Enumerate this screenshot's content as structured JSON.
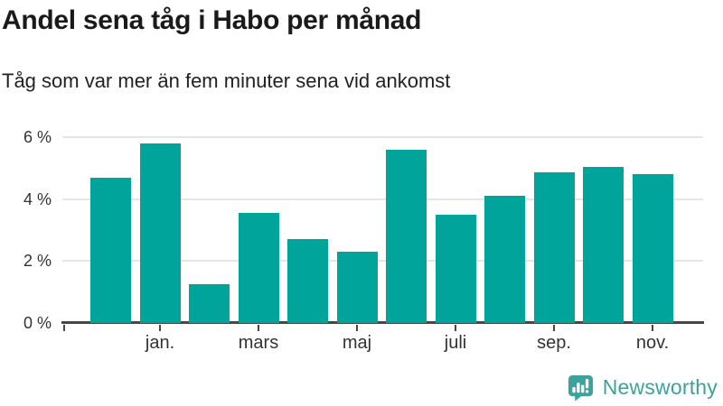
{
  "header": {
    "title": "Andel sena tåg i Habo per månad",
    "subtitle": "Tåg som var mer än fem minuter sena vid ankomst"
  },
  "chart_data": {
    "type": "bar",
    "title": "Andel sena tåg i Habo per månad",
    "subtitle": "Tåg som var mer än fem minuter sena vid ankomst",
    "categories": [
      "",
      "jan.",
      "",
      "mars",
      "",
      "maj",
      "",
      "juli",
      "",
      "sep.",
      "",
      "nov."
    ],
    "values": [
      4.7,
      5.8,
      1.25,
      3.55,
      2.7,
      2.3,
      5.6,
      3.5,
      4.1,
      4.85,
      5.05,
      4.8
    ],
    "unit": "%",
    "xlabel": "",
    "ylabel": "",
    "y_ticks": [
      {
        "value": 0,
        "label": "0 %"
      },
      {
        "value": 2,
        "label": "2 %"
      },
      {
        "value": 4,
        "label": "4 %"
      },
      {
        "value": 6,
        "label": "6 %"
      }
    ],
    "ylim": [
      0,
      6.35
    ],
    "grid": "horizontal",
    "legend": "none",
    "bar_color": "#00a49b"
  },
  "footer": {
    "brand": "Newsworthy",
    "logo_icon": "bar-chart-speech-bubble-icon"
  },
  "colors": {
    "bar": "#00a49b",
    "logo": "#3da29c",
    "title_text": "#1a1a1a",
    "axis_text": "#333333",
    "gridline": "#e5e5e5",
    "axis_line": "#474747",
    "background": "#ffffff"
  }
}
